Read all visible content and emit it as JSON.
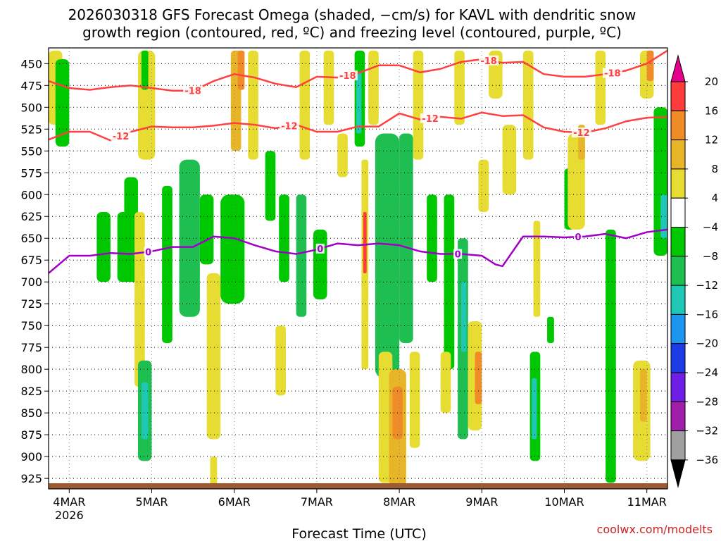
{
  "chart_data": {
    "type": "time-height cross-section",
    "title_line1": "2026030318 GFS Forecast Omega (shaded, −cm/s) for KAVL with dendritic snow",
    "title_line2": "growth region (contoured, red, ºC) and freezing level (contoured, purple, ºC)",
    "xlabel": "Forecast Time (UTC)",
    "credit": "coolwx.com/modelts",
    "x_range_hours": [
      0,
      180
    ],
    "x_ticks": [
      {
        "label": "4MAR",
        "sub": "2026",
        "hour": 6
      },
      {
        "label": "5MAR",
        "hour": 30
      },
      {
        "label": "6MAR",
        "hour": 54
      },
      {
        "label": "7MAR",
        "hour": 78
      },
      {
        "label": "8MAR",
        "hour": 102
      },
      {
        "label": "9MAR",
        "hour": 126
      },
      {
        "label": "10MAR",
        "hour": 150
      },
      {
        "label": "11MAR",
        "hour": 174
      }
    ],
    "y_range_hpa": [
      432,
      937
    ],
    "y_ticks": [
      450,
      475,
      500,
      525,
      550,
      575,
      600,
      625,
      650,
      675,
      700,
      725,
      750,
      775,
      800,
      825,
      850,
      875,
      900,
      925
    ],
    "colorbar": {
      "tick_labels": [
        "20",
        "16",
        "12",
        "8",
        "4",
        "−4",
        "−8",
        "−12",
        "−16",
        "−20",
        "−24",
        "−28",
        "−32",
        "−36"
      ],
      "colors": [
        "#ff3c3c",
        "#f08c28",
        "#e8b428",
        "#e6dc32",
        "#ffffff",
        "#00c800",
        "#1ebe50",
        "#1ec8b4",
        "#1e96f0",
        "#1e3ce6",
        "#6e1ee6",
        "#a01eaa",
        "#a0a0a0"
      ],
      "top_arrow_color": "#e6008c",
      "bottom_arrow_color": "#000000"
    },
    "omega_cells": [
      {
        "t0": 0,
        "t1": 4,
        "p0": 435,
        "p1": 520,
        "v": 5
      },
      {
        "t0": 2,
        "t1": 6,
        "p0": 445,
        "p1": 545,
        "v": -6
      },
      {
        "t0": 14,
        "t1": 18,
        "p0": 620,
        "p1": 700,
        "v": -6
      },
      {
        "t0": 20,
        "t1": 24,
        "p0": 620,
        "p1": 700,
        "v": -6
      },
      {
        "t0": 22,
        "t1": 26,
        "p0": 580,
        "p1": 700,
        "v": -7
      },
      {
        "t0": 25,
        "t1": 28,
        "p0": 620,
        "p1": 820,
        "v": 6
      },
      {
        "t0": 26,
        "t1": 30,
        "p0": 790,
        "p1": 905,
        "v": -9
      },
      {
        "t0": 27,
        "t1": 29,
        "p0": 815,
        "p1": 880,
        "v": -13
      },
      {
        "t0": 26,
        "t1": 31,
        "p0": 435,
        "p1": 560,
        "v": 5
      },
      {
        "t0": 27,
        "t1": 29,
        "p0": 435,
        "p1": 480,
        "v": -6
      },
      {
        "t0": 33,
        "t1": 36,
        "p0": 590,
        "p1": 770,
        "v": -7
      },
      {
        "t0": 38,
        "t1": 44,
        "p0": 560,
        "p1": 740,
        "v": -8
      },
      {
        "t0": 44,
        "t1": 48,
        "p0": 600,
        "p1": 680,
        "v": -6
      },
      {
        "t0": 46,
        "t1": 50,
        "p0": 690,
        "p1": 880,
        "v": 5
      },
      {
        "t0": 47,
        "t1": 49,
        "p0": 900,
        "p1": 935,
        "v": 5
      },
      {
        "t0": 50,
        "t1": 57,
        "p0": 600,
        "p1": 725,
        "v": -7
      },
      {
        "t0": 53,
        "t1": 56,
        "p0": 435,
        "p1": 550,
        "v": 8
      },
      {
        "t0": 55,
        "t1": 57,
        "p0": 435,
        "p1": 480,
        "v": 12
      },
      {
        "t0": 58,
        "t1": 61,
        "p0": 435,
        "p1": 560,
        "v": 5
      },
      {
        "t0": 63,
        "t1": 66,
        "p0": 550,
        "p1": 630,
        "v": -6
      },
      {
        "t0": 67,
        "t1": 70,
        "p0": 600,
        "p1": 700,
        "v": -7
      },
      {
        "t0": 66,
        "t1": 69,
        "p0": 750,
        "p1": 830,
        "v": 5
      },
      {
        "t0": 72,
        "t1": 75,
        "p0": 600,
        "p1": 740,
        "v": -8
      },
      {
        "t0": 73,
        "t1": 76,
        "p0": 435,
        "p1": 560,
        "v": 5
      },
      {
        "t0": 77,
        "t1": 81,
        "p0": 640,
        "p1": 720,
        "v": -7
      },
      {
        "t0": 80,
        "t1": 83,
        "p0": 435,
        "p1": 520,
        "v": 5
      },
      {
        "t0": 84,
        "t1": 87,
        "p0": 530,
        "p1": 580,
        "v": 5
      },
      {
        "t0": 89,
        "t1": 92,
        "p0": 435,
        "p1": 545,
        "v": -7
      },
      {
        "t0": 89.5,
        "t1": 91,
        "p0": 460,
        "p1": 530,
        "v": -12
      },
      {
        "t0": 91,
        "t1": 93,
        "p0": 560,
        "p1": 800,
        "v": 6
      },
      {
        "t0": 91.5,
        "t1": 92.5,
        "p0": 620,
        "p1": 690,
        "v": 17
      },
      {
        "t0": 93,
        "t1": 96,
        "p0": 435,
        "p1": 520,
        "v": 5
      },
      {
        "t0": 95,
        "t1": 102,
        "p0": 530,
        "p1": 810,
        "v": -8
      },
      {
        "t0": 97,
        "t1": 101,
        "p0": 590,
        "p1": 720,
        "v": -11
      },
      {
        "t0": 102,
        "t1": 106,
        "p0": 530,
        "p1": 770,
        "v": -8
      },
      {
        "t0": 103,
        "t1": 105,
        "p0": 580,
        "p1": 700,
        "v": -11
      },
      {
        "t0": 96,
        "t1": 100,
        "p0": 780,
        "p1": 930,
        "v": 6
      },
      {
        "t0": 99,
        "t1": 104,
        "p0": 800,
        "p1": 935,
        "v": 9
      },
      {
        "t0": 100,
        "t1": 103,
        "p0": 820,
        "p1": 880,
        "v": 13
      },
      {
        "t0": 106,
        "t1": 109,
        "p0": 435,
        "p1": 560,
        "v": 5
      },
      {
        "t0": 105,
        "t1": 108,
        "p0": 780,
        "p1": 890,
        "v": 6
      },
      {
        "t0": 110,
        "t1": 113,
        "p0": 600,
        "p1": 700,
        "v": -7
      },
      {
        "t0": 115,
        "t1": 118,
        "p0": 600,
        "p1": 800,
        "v": -6
      },
      {
        "t0": 114,
        "t1": 117,
        "p0": 780,
        "p1": 850,
        "v": 5
      },
      {
        "t0": 118,
        "t1": 121,
        "p0": 435,
        "p1": 520,
        "v": 5
      },
      {
        "t0": 119,
        "t1": 122,
        "p0": 650,
        "p1": 880,
        "v": -8
      },
      {
        "t0": 120,
        "t1": 121.5,
        "p0": 700,
        "p1": 780,
        "v": -13
      },
      {
        "t0": 122,
        "t1": 126,
        "p0": 745,
        "p1": 870,
        "v": 7
      },
      {
        "t0": 124,
        "t1": 126,
        "p0": 780,
        "p1": 840,
        "v": 13
      },
      {
        "t0": 125,
        "t1": 128,
        "p0": 560,
        "p1": 620,
        "v": 5
      },
      {
        "t0": 128,
        "t1": 132,
        "p0": 435,
        "p1": 490,
        "v": 5
      },
      {
        "t0": 132,
        "t1": 136,
        "p0": 520,
        "p1": 600,
        "v": 5
      },
      {
        "t0": 138,
        "t1": 141,
        "p0": 435,
        "p1": 560,
        "v": 5
      },
      {
        "t0": 140,
        "t1": 143,
        "p0": 780,
        "p1": 905,
        "v": -7
      },
      {
        "t0": 140.5,
        "t1": 142,
        "p0": 810,
        "p1": 880,
        "v": -13
      },
      {
        "t0": 141,
        "t1": 143,
        "p0": 630,
        "p1": 740,
        "v": 5
      },
      {
        "t0": 145,
        "t1": 147,
        "p0": 740,
        "p1": 770,
        "v": -7
      },
      {
        "t0": 150,
        "t1": 153,
        "p0": 570,
        "p1": 640,
        "v": -6
      },
      {
        "t0": 151,
        "t1": 156,
        "p0": 530,
        "p1": 640,
        "v": 5
      },
      {
        "t0": 154,
        "t1": 156,
        "p0": 520,
        "p1": 560,
        "v": 8
      },
      {
        "t0": 159,
        "t1": 162,
        "p0": 435,
        "p1": 520,
        "v": 5
      },
      {
        "t0": 162,
        "t1": 165,
        "p0": 640,
        "p1": 930,
        "v": -6
      },
      {
        "t0": 170,
        "t1": 175,
        "p0": 790,
        "p1": 905,
        "v": 6
      },
      {
        "t0": 172,
        "t1": 174,
        "p0": 800,
        "p1": 860,
        "v": 10
      },
      {
        "t0": 172,
        "t1": 176,
        "p0": 435,
        "p1": 490,
        "v": 5
      },
      {
        "t0": 174,
        "t1": 176,
        "p0": 435,
        "p1": 470,
        "v": 12
      },
      {
        "t0": 176,
        "t1": 180,
        "p0": 500,
        "p1": 670,
        "v": -7
      },
      {
        "t0": 178,
        "t1": 180,
        "p0": 600,
        "p1": 650,
        "v": -12
      }
    ],
    "dgz_minus18": {
      "name": "-18 °C isotherm",
      "color": "#ff4040",
      "times": [
        0,
        6,
        12,
        18,
        24,
        30,
        36,
        42,
        48,
        54,
        60,
        66,
        72,
        78,
        84,
        90,
        96,
        102,
        108,
        114,
        120,
        126,
        132,
        138,
        144,
        150,
        156,
        162,
        168,
        174,
        180
      ],
      "levels": [
        470,
        478,
        480,
        477,
        475,
        478,
        481,
        481,
        470,
        462,
        466,
        473,
        477,
        465,
        466,
        461,
        452,
        452,
        460,
        456,
        448,
        445,
        449,
        448,
        462,
        465,
        465,
        462,
        458,
        450,
        435
      ],
      "labels": [
        {
          "t": 42,
          "text": "-18"
        },
        {
          "t": 87,
          "text": "-18"
        },
        {
          "t": 128,
          "text": "-18"
        },
        {
          "t": 164,
          "text": "-18"
        }
      ]
    },
    "dgz_minus12": {
      "name": "-12 °C isotherm",
      "color": "#ff4040",
      "times": [
        0,
        6,
        12,
        18,
        24,
        30,
        36,
        42,
        48,
        54,
        60,
        66,
        72,
        78,
        84,
        90,
        96,
        102,
        108,
        114,
        120,
        126,
        132,
        138,
        144,
        150,
        156,
        162,
        168,
        174,
        180
      ],
      "levels": [
        537,
        528,
        528,
        538,
        528,
        522,
        523,
        523,
        521,
        518,
        520,
        524,
        520,
        528,
        528,
        522,
        522,
        507,
        514,
        511,
        513,
        506,
        510,
        509,
        523,
        528,
        529,
        524,
        516,
        512,
        511
      ],
      "labels": [
        {
          "t": 21,
          "text": "-12"
        },
        {
          "t": 70,
          "text": "-12"
        },
        {
          "t": 111,
          "text": "-12"
        },
        {
          "t": 155,
          "text": "-12"
        }
      ]
    },
    "freezing_level": {
      "name": "0 °C isotherm (freezing level)",
      "color": "#a000c8",
      "times": [
        0,
        6,
        12,
        18,
        24,
        30,
        36,
        42,
        48,
        54,
        60,
        66,
        72,
        78,
        84,
        90,
        96,
        102,
        108,
        114,
        120,
        126,
        130,
        132,
        138,
        144,
        150,
        156,
        162,
        168,
        174,
        180
      ],
      "levels": [
        690,
        670,
        670,
        667,
        668,
        665,
        660,
        660,
        648,
        650,
        658,
        665,
        668,
        663,
        656,
        658,
        656,
        658,
        665,
        668,
        668,
        670,
        680,
        682,
        648,
        648,
        649,
        648,
        645,
        650,
        643,
        640
      ],
      "labels": [
        {
          "t": 29,
          "text": "0"
        },
        {
          "t": 79,
          "text": "0"
        },
        {
          "t": 119,
          "text": "0"
        },
        {
          "t": 154,
          "text": "0"
        }
      ]
    }
  }
}
